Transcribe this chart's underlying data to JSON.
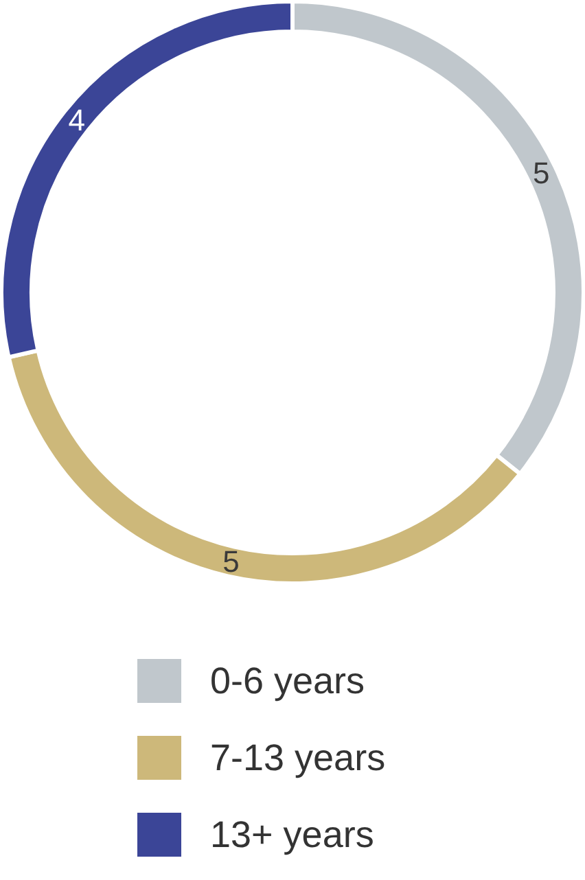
{
  "chart_data": {
    "type": "donut",
    "categories": [
      "0-6 years",
      "7-13 years",
      "13+ years"
    ],
    "values": [
      5,
      5,
      4
    ],
    "colors": [
      "#c0c7cc",
      "#cdb87a",
      "#3b4597"
    ],
    "data_labels": true,
    "legend": "bottom"
  }
}
